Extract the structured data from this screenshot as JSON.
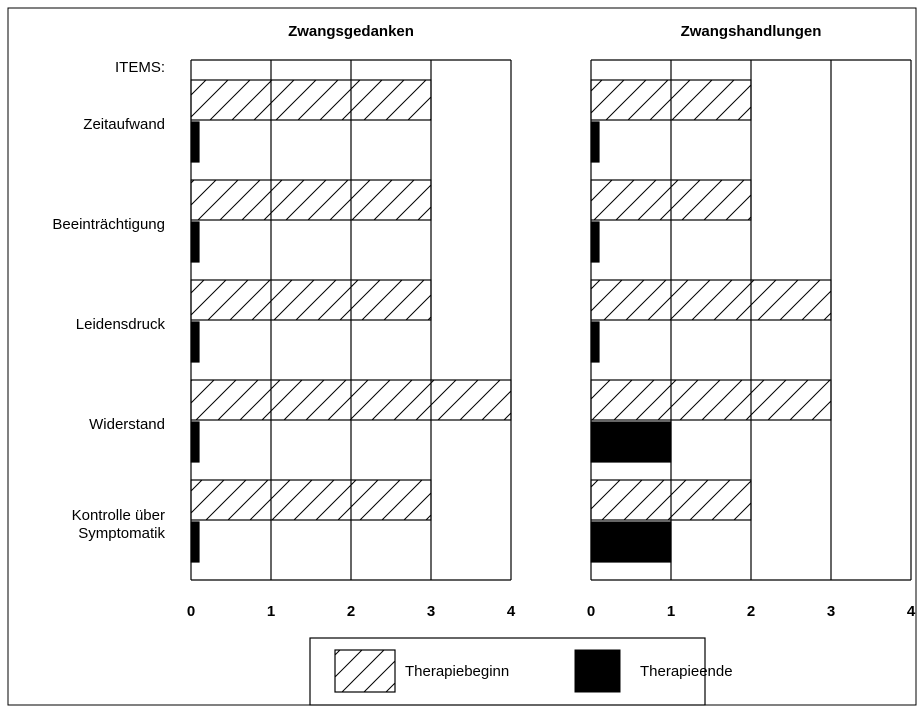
{
  "items_label": "ITEMS:",
  "chart_data": [
    {
      "type": "bar",
      "orientation": "horizontal",
      "title": "Zwangsgedanken",
      "categories": [
        "Zeitaufwand",
        "Beeinträchtigung",
        "Leidensdruck",
        "Widerstand",
        "Kontrolle über Symptomatik"
      ],
      "series": [
        {
          "name": "Therapiebeginn",
          "color": "hatched",
          "values": [
            3,
            3,
            3,
            4,
            3
          ]
        },
        {
          "name": "Therapieende",
          "color": "#000000",
          "values": [
            0.1,
            0.1,
            0.1,
            0.1,
            0.1
          ]
        }
      ],
      "xlim": [
        0,
        4
      ],
      "xticks": [
        0,
        1,
        2,
        3,
        4
      ],
      "grid": true
    },
    {
      "type": "bar",
      "orientation": "horizontal",
      "title": "Zwangshandlungen",
      "categories": [
        "Zeitaufwand",
        "Beeinträchtigung",
        "Leidensdruck",
        "Widerstand",
        "Kontrolle über Symptomatik"
      ],
      "series": [
        {
          "name": "Therapiebeginn",
          "color": "hatched",
          "values": [
            2,
            2,
            3,
            3,
            2
          ]
        },
        {
          "name": "Therapieende",
          "color": "#000000",
          "values": [
            0.1,
            0.1,
            0.1,
            1,
            1
          ]
        }
      ],
      "xlim": [
        0,
        4
      ],
      "xticks": [
        0,
        1,
        2,
        3,
        4
      ],
      "grid": true
    }
  ]
}
